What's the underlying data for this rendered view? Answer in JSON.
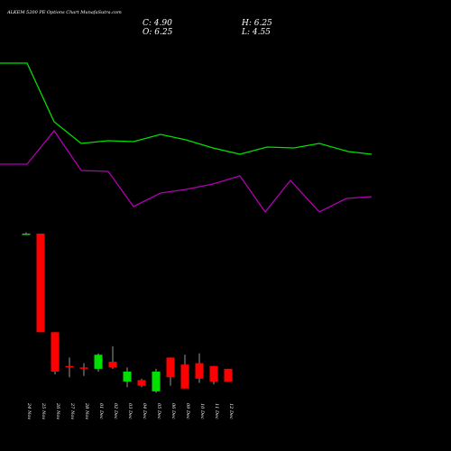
{
  "chart_data": {
    "type": "candlestick",
    "title": "ALKEM 5200 PE Options Chart MunafaSutra.com",
    "ohlc_summary": {
      "close_label": "C: 4.90",
      "high_label": "H: 6.25",
      "open_label": "O: 6.25",
      "low_label": "L: 4.55"
    },
    "categories": [
      "24 Nov",
      "25 Nov",
      "26 Nov",
      "27 Nov",
      "28 Nov",
      "01 Dec",
      "02 Dec",
      "03 Dec",
      "04 Dec",
      "05 Dec",
      "06 Dec",
      "09 Dec",
      "10 Dec",
      "11 Dec",
      "12 Dec"
    ],
    "candles": [
      {
        "o": 1110,
        "h": 1111,
        "l": 1109,
        "c": 1110,
        "dir": "up"
      },
      {
        "o": 1110,
        "h": 1110,
        "l": 1040,
        "c": 1040,
        "dir": "down"
      },
      {
        "o": 1040,
        "h": 1040,
        "l": 1010,
        "c": 1012,
        "dir": "down"
      },
      {
        "o": 1016,
        "h": 1022,
        "l": 1008,
        "c": 1015,
        "dir": "down"
      },
      {
        "o": 1015,
        "h": 1018,
        "l": 1009,
        "c": 1014,
        "dir": "down"
      },
      {
        "o": 1014,
        "h": 1025,
        "l": 1012,
        "c": 1024,
        "dir": "up"
      },
      {
        "o": 1019,
        "h": 1030,
        "l": 1014,
        "c": 1015,
        "dir": "down"
      },
      {
        "o": 1005,
        "h": 1015,
        "l": 1001,
        "c": 1012,
        "dir": "up"
      },
      {
        "o": 1006,
        "h": 1007,
        "l": 1001,
        "c": 1002,
        "dir": "down"
      },
      {
        "o": 998,
        "h": 1014,
        "l": 997,
        "c": 1012,
        "dir": "up"
      },
      {
        "o": 1022,
        "h": 1022,
        "l": 1002,
        "c": 1008,
        "dir": "down"
      },
      {
        "o": 1017,
        "h": 1024,
        "l": 1000,
        "c": 1000,
        "dir": "down"
      },
      {
        "o": 1018,
        "h": 1025,
        "l": 1004,
        "c": 1007,
        "dir": "down"
      },
      {
        "o": 1016,
        "h": 1016,
        "l": 1003,
        "c": 1005,
        "dir": "down"
      },
      {
        "o": 1014,
        "h": 1014,
        "l": 1005,
        "c": 1005,
        "dir": "down"
      }
    ],
    "series": [
      {
        "color": "#00e000",
        "points": [
          [
            0,
            70
          ],
          [
            30,
            70
          ],
          [
            60,
            135
          ],
          [
            90,
            159
          ],
          [
            120,
            156
          ],
          [
            148,
            157
          ],
          [
            178,
            149
          ],
          [
            206,
            155
          ],
          [
            236,
            164
          ],
          [
            266,
            171
          ],
          [
            296,
            163
          ],
          [
            326,
            164
          ],
          [
            354,
            159
          ],
          [
            386,
            168
          ],
          [
            412,
            171
          ]
        ]
      },
      {
        "color": "#b000b0",
        "points": [
          [
            0,
            182
          ],
          [
            30,
            182
          ],
          [
            60,
            145
          ],
          [
            90,
            189
          ],
          [
            120,
            190
          ],
          [
            148,
            229
          ],
          [
            178,
            214
          ],
          [
            206,
            210
          ],
          [
            236,
            204
          ],
          [
            266,
            195
          ],
          [
            294,
            235
          ],
          [
            322,
            200
          ],
          [
            354,
            235
          ],
          [
            384,
            220
          ],
          [
            412,
            218
          ]
        ]
      }
    ],
    "colors": {
      "up": "#00e000",
      "down": "#ff0000",
      "background": "#000000",
      "text": "#ffffff"
    }
  }
}
